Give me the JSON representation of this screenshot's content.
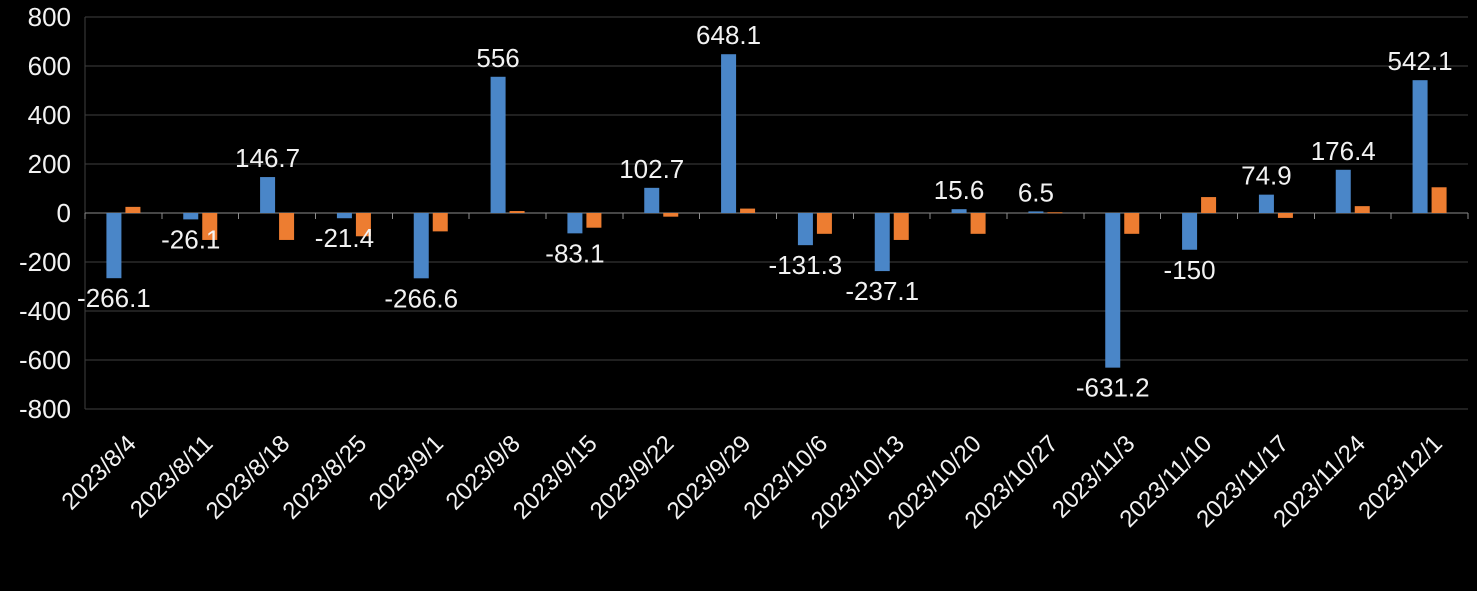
{
  "chart_data": {
    "type": "bar",
    "title": "",
    "xlabel": "",
    "ylabel": "",
    "ylim": [
      -800,
      800
    ],
    "ytick_step": 200,
    "ytick_labels": [
      "-800",
      "-600",
      "-400",
      "-200",
      "0",
      "200",
      "400",
      "600",
      "800"
    ],
    "grid": true,
    "legend": "none",
    "categories": [
      "2023/8/4",
      "2023/8/11",
      "2023/8/18",
      "2023/8/25",
      "2023/9/1",
      "2023/9/8",
      "2023/9/15",
      "2023/9/22",
      "2023/9/29",
      "2023/10/6",
      "2023/10/13",
      "2023/10/20",
      "2023/10/27",
      "2023/11/3",
      "2023/11/10",
      "2023/11/17",
      "2023/11/24",
      "2023/12/1"
    ],
    "series": [
      {
        "name": "blue",
        "color": "#4a86c8",
        "data_labels": true,
        "values": [
          -266.1,
          -26.1,
          146.7,
          -21.4,
          -266.6,
          556,
          -83.1,
          102.7,
          648.1,
          -131.3,
          -237.1,
          15.6,
          6.5,
          -631.2,
          -150,
          74.9,
          176.4,
          542.1
        ],
        "labels": [
          "-266.1",
          "-26.1",
          "146.7",
          "-21.4",
          "-266.6",
          "556",
          "-83.1",
          "102.7",
          "648.1",
          "-131.3",
          "-237.1",
          "15.6",
          "6.5",
          "-631.2",
          "-150",
          "74.9",
          "176.4",
          "542.1"
        ]
      },
      {
        "name": "orange",
        "color": "#ed7d31",
        "data_labels": false,
        "note": "values estimated from bar heights; no labels shown in image",
        "values": [
          25,
          -110,
          -110,
          -95,
          -75,
          8,
          -60,
          -15,
          18,
          -85,
          -110,
          -85,
          3,
          -85,
          65,
          -20,
          28,
          105
        ]
      }
    ],
    "colors": {
      "background": "#000000",
      "text": "#f2f2f2",
      "grid": "#3f3f3f",
      "axis": "#8c8c8c"
    }
  }
}
